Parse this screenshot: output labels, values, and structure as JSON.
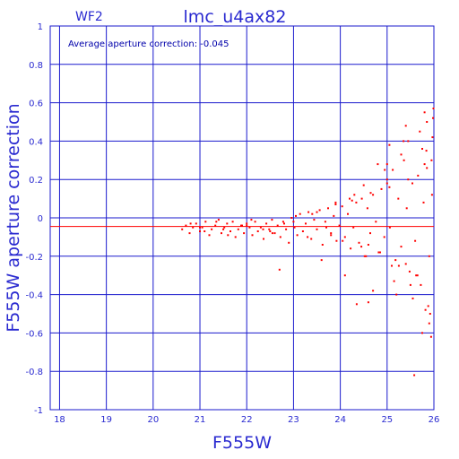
{
  "chart_data": {
    "type": "scatter",
    "chip_label": "WF2",
    "title": "lmc_u4ax82",
    "xlabel": "F555W",
    "ylabel": "F555W aperture correction",
    "annotation": "Average aperture correction: -0.045",
    "average_correction": -0.045,
    "xlim": [
      17.8,
      26
    ],
    "ylim": [
      -1,
      1
    ],
    "x_ticks": [
      18,
      19,
      20,
      21,
      22,
      23,
      24,
      25,
      26
    ],
    "y_ticks": [
      -1,
      -0.8,
      -0.6,
      -0.4,
      -0.2,
      0,
      0.2,
      0.4,
      0.6,
      0.8,
      1
    ],
    "x_tick_labels": [
      "18",
      "19",
      "20",
      "21",
      "22",
      "23",
      "24",
      "25",
      "26"
    ],
    "y_tick_labels": [
      "-1",
      "-0.8",
      "-0.6",
      "-0.4",
      "-0.2",
      "0",
      "0.2",
      "0.4",
      "0.6",
      "0.8",
      "1"
    ],
    "grid": true,
    "colors": {
      "axis": "#2a2ad0",
      "grid": "#1a1acd",
      "points": "#ff0000",
      "avg_line": "#ff0000"
    },
    "series": [
      {
        "x": [
          20.62,
          20.7,
          20.78,
          20.85,
          20.92,
          21.0,
          21.05,
          21.12,
          21.2,
          21.25,
          21.33,
          21.4,
          21.46,
          21.52,
          21.58,
          21.65,
          21.7,
          21.76,
          21.82,
          21.88,
          21.94,
          22.0,
          22.06,
          22.12,
          22.18,
          22.24,
          22.3,
          22.36,
          22.42,
          22.48,
          22.54,
          22.6,
          22.66,
          22.72,
          22.78,
          22.84,
          22.9,
          22.96,
          23.02,
          23.08,
          23.14,
          23.2,
          23.26,
          23.32,
          23.38,
          23.44,
          23.5,
          23.56,
          23.62,
          23.68,
          23.74,
          23.8,
          23.86,
          23.92,
          23.98,
          24.04,
          24.1,
          24.16,
          24.22,
          24.28,
          24.34,
          24.4,
          24.46,
          24.52,
          24.58,
          24.64,
          24.7,
          24.76,
          24.82,
          24.88,
          24.94,
          25.0,
          25.06,
          25.12,
          25.18,
          25.24,
          25.3,
          25.36,
          25.42,
          25.48,
          25.54,
          25.6,
          25.66,
          25.72,
          25.78,
          25.84,
          25.9,
          25.96,
          20.8,
          21.1,
          21.35,
          21.6,
          21.9,
          22.1,
          22.35,
          22.55,
          22.8,
          23.05,
          23.3,
          23.5,
          23.7,
          23.9,
          24.05,
          24.25,
          24.45,
          24.65,
          24.85,
          25.05,
          25.25,
          25.45,
          25.65,
          25.85,
          21.0,
          21.5,
          22.0,
          22.5,
          23.0,
          23.4,
          23.8,
          24.2,
          24.6,
          25.0,
          25.4,
          25.8,
          22.7,
          23.6,
          23.9,
          24.1,
          24.35,
          24.5,
          24.7,
          24.95,
          25.15,
          25.35,
          25.55,
          25.75,
          25.92,
          24.3,
          24.55,
          24.8,
          25.1,
          25.3,
          25.5,
          25.7,
          25.88,
          25.95,
          25.98,
          25.05,
          25.2,
          25.4,
          25.62,
          25.8,
          25.9,
          25.97,
          25.58,
          25.75,
          25.85,
          25.94,
          25.99,
          24.6,
          25.0,
          25.45,
          25.82
        ],
        "y": [
          -0.06,
          -0.04,
          -0.08,
          -0.05,
          -0.03,
          -0.07,
          -0.05,
          -0.02,
          -0.09,
          -0.06,
          -0.04,
          -0.01,
          -0.08,
          -0.05,
          -0.03,
          -0.07,
          -0.02,
          -0.1,
          -0.06,
          -0.04,
          -0.08,
          -0.03,
          -0.05,
          -0.09,
          -0.02,
          -0.07,
          -0.05,
          -0.11,
          -0.03,
          -0.06,
          -0.01,
          -0.08,
          -0.04,
          -0.1,
          -0.02,
          -0.06,
          -0.13,
          0.0,
          -0.05,
          -0.09,
          0.02,
          -0.07,
          -0.03,
          0.03,
          -0.11,
          -0.01,
          -0.06,
          0.04,
          -0.14,
          -0.02,
          0.05,
          -0.08,
          0.01,
          -0.12,
          -0.04,
          0.06,
          -0.1,
          0.02,
          -0.16,
          -0.05,
          0.08,
          -0.13,
          0.1,
          -0.2,
          0.05,
          -0.08,
          0.12,
          -0.02,
          -0.18,
          0.15,
          -0.1,
          0.2,
          -0.05,
          0.25,
          -0.22,
          0.1,
          -0.15,
          0.3,
          0.05,
          -0.28,
          0.18,
          -0.12,
          0.22,
          -0.35,
          0.08,
          0.35,
          -0.2,
          0.12,
          -0.03,
          -0.07,
          -0.02,
          -0.09,
          -0.04,
          -0.01,
          -0.06,
          -0.08,
          -0.03,
          0.01,
          -0.1,
          0.03,
          -0.05,
          0.07,
          -0.12,
          0.09,
          -0.15,
          0.13,
          -0.18,
          0.16,
          -0.25,
          0.2,
          -0.3,
          0.26,
          -0.05,
          -0.06,
          -0.04,
          -0.07,
          -0.02,
          0.02,
          -0.09,
          0.1,
          -0.14,
          0.18,
          -0.24,
          0.28,
          -0.27,
          -0.22,
          0.08,
          -0.3,
          -0.45,
          0.17,
          -0.38,
          0.25,
          -0.33,
          0.4,
          -0.42,
          0.36,
          -0.5,
          0.12,
          -0.2,
          0.28,
          -0.25,
          0.33,
          -0.35,
          0.45,
          -0.46,
          0.3,
          0.52,
          0.38,
          -0.4,
          0.48,
          -0.3,
          0.55,
          -0.55,
          0.42,
          -0.82,
          -0.6,
          0.5,
          -0.62,
          0.57,
          -0.44,
          0.28,
          0.4,
          -0.48
        ]
      }
    ]
  }
}
